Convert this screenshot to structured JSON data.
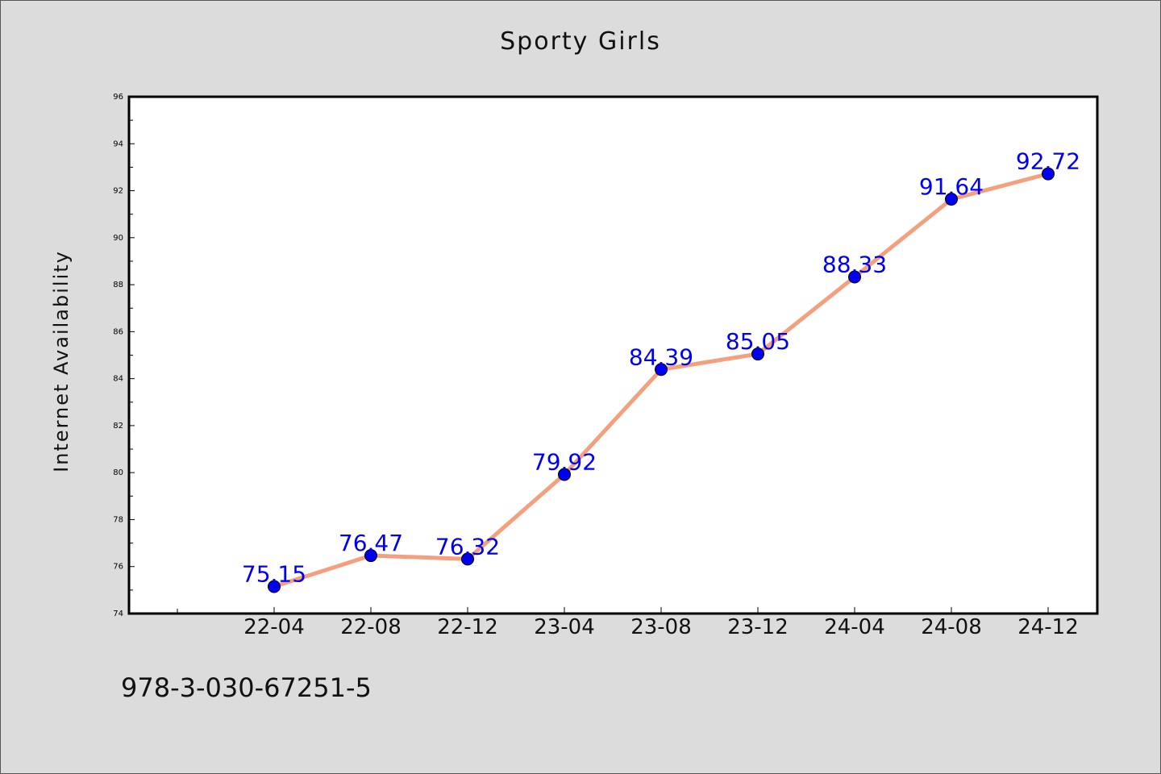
{
  "chart_data": {
    "type": "line",
    "title": "Sporty Girls",
    "xlabel": "",
    "ylabel": "Internet Availability",
    "categories": [
      "22-04",
      "22-08",
      "22-12",
      "23-04",
      "23-08",
      "23-12",
      "24-04",
      "24-08",
      "24-12"
    ],
    "series": [
      {
        "values": [
          75.15,
          76.47,
          76.32,
          79.92,
          84.39,
          85.05,
          88.33,
          91.64,
          92.72
        ],
        "line_color": "#f4a07e",
        "marker_color": "#0000ee",
        "label_color": "#0000ee"
      }
    ],
    "ylim": [
      74,
      96
    ],
    "yticks": [
      74,
      76,
      78,
      80,
      82,
      84,
      86,
      88,
      90,
      92,
      94,
      96
    ],
    "grid": false,
    "legend": "none",
    "data_labels": true
  },
  "footer_text": "978-3-030-67251-5"
}
